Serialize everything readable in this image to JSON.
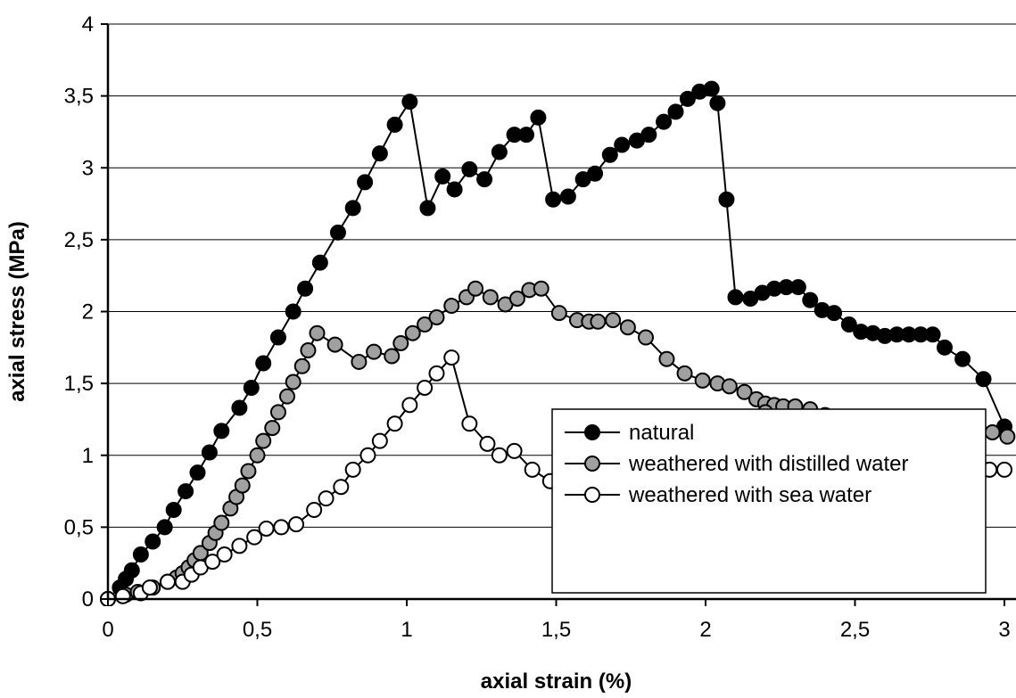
{
  "chart_data": {
    "type": "scatter",
    "title": "",
    "xlabel": "axial strain (%)",
    "ylabel": "axial stress (MPa)",
    "xlim": [
      0,
      3
    ],
    "ylim": [
      0,
      4
    ],
    "x_ticks": [
      0,
      0.5,
      1,
      1.5,
      2,
      2.5,
      3
    ],
    "x_tick_labels": [
      "0",
      "0,5",
      "1",
      "1,5",
      "2",
      "2,5",
      "3"
    ],
    "y_ticks": [
      0,
      0.5,
      1,
      1.5,
      2,
      2.5,
      3,
      3.5,
      4
    ],
    "y_tick_labels": [
      "0",
      "0,5",
      "1",
      "1,5",
      "2",
      "2,5",
      "3",
      "3,5",
      "4"
    ],
    "grid": "horizontal",
    "legend_position": "bottom-right",
    "line_color": "#000000",
    "series": [
      {
        "name": "natural",
        "marker_fill": "#000000",
        "points": [
          [
            0,
            0
          ],
          [
            0.04,
            0.08
          ],
          [
            0.06,
            0.14
          ],
          [
            0.08,
            0.2
          ],
          [
            0.11,
            0.31
          ],
          [
            0.15,
            0.4
          ],
          [
            0.19,
            0.5
          ],
          [
            0.22,
            0.62
          ],
          [
            0.26,
            0.75
          ],
          [
            0.3,
            0.88
          ],
          [
            0.34,
            1.02
          ],
          [
            0.38,
            1.17
          ],
          [
            0.44,
            1.33
          ],
          [
            0.48,
            1.47
          ],
          [
            0.52,
            1.64
          ],
          [
            0.57,
            1.82
          ],
          [
            0.62,
            2.0
          ],
          [
            0.66,
            2.16
          ],
          [
            0.71,
            2.34
          ],
          [
            0.77,
            2.55
          ],
          [
            0.82,
            2.72
          ],
          [
            0.86,
            2.9
          ],
          [
            0.91,
            3.1
          ],
          [
            0.96,
            3.3
          ],
          [
            1.01,
            3.46
          ],
          [
            1.07,
            2.72
          ],
          [
            1.12,
            2.94
          ],
          [
            1.16,
            2.85
          ],
          [
            1.21,
            2.99
          ],
          [
            1.26,
            2.92
          ],
          [
            1.31,
            3.11
          ],
          [
            1.36,
            3.23
          ],
          [
            1.4,
            3.23
          ],
          [
            1.44,
            3.35
          ],
          [
            1.49,
            2.78
          ],
          [
            1.54,
            2.8
          ],
          [
            1.59,
            2.92
          ],
          [
            1.63,
            2.96
          ],
          [
            1.68,
            3.09
          ],
          [
            1.72,
            3.16
          ],
          [
            1.77,
            3.19
          ],
          [
            1.81,
            3.23
          ],
          [
            1.86,
            3.32
          ],
          [
            1.9,
            3.39
          ],
          [
            1.94,
            3.48
          ],
          [
            1.98,
            3.53
          ],
          [
            2.02,
            3.55
          ],
          [
            2.04,
            3.45
          ],
          [
            2.07,
            2.78
          ],
          [
            2.1,
            2.1
          ],
          [
            2.15,
            2.09
          ],
          [
            2.19,
            2.13
          ],
          [
            2.23,
            2.16
          ],
          [
            2.27,
            2.17
          ],
          [
            2.31,
            2.17
          ],
          [
            2.35,
            2.08
          ],
          [
            2.39,
            2.01
          ],
          [
            2.43,
            1.99
          ],
          [
            2.48,
            1.91
          ],
          [
            2.52,
            1.86
          ],
          [
            2.56,
            1.85
          ],
          [
            2.6,
            1.83
          ],
          [
            2.64,
            1.84
          ],
          [
            2.68,
            1.84
          ],
          [
            2.72,
            1.84
          ],
          [
            2.76,
            1.84
          ],
          [
            2.8,
            1.75
          ],
          [
            2.86,
            1.67
          ],
          [
            2.93,
            1.53
          ],
          [
            3.0,
            1.2
          ]
        ]
      },
      {
        "name": "weathered with distilled water",
        "marker_fill": "#a0a0a0",
        "points": [
          [
            0,
            0
          ],
          [
            0.06,
            0.03
          ],
          [
            0.1,
            0.05
          ],
          [
            0.15,
            0.08
          ],
          [
            0.2,
            0.12
          ],
          [
            0.23,
            0.15
          ],
          [
            0.25,
            0.18
          ],
          [
            0.27,
            0.22
          ],
          [
            0.29,
            0.27
          ],
          [
            0.31,
            0.32
          ],
          [
            0.34,
            0.39
          ],
          [
            0.36,
            0.46
          ],
          [
            0.38,
            0.53
          ],
          [
            0.41,
            0.63
          ],
          [
            0.43,
            0.71
          ],
          [
            0.45,
            0.79
          ],
          [
            0.47,
            0.89
          ],
          [
            0.5,
            1.0
          ],
          [
            0.52,
            1.1
          ],
          [
            0.55,
            1.19
          ],
          [
            0.57,
            1.3
          ],
          [
            0.6,
            1.41
          ],
          [
            0.62,
            1.51
          ],
          [
            0.65,
            1.62
          ],
          [
            0.67,
            1.73
          ],
          [
            0.7,
            1.85
          ],
          [
            0.76,
            1.77
          ],
          [
            0.84,
            1.65
          ],
          [
            0.89,
            1.72
          ],
          [
            0.95,
            1.69
          ],
          [
            0.98,
            1.78
          ],
          [
            1.02,
            1.85
          ],
          [
            1.06,
            1.91
          ],
          [
            1.1,
            1.96
          ],
          [
            1.15,
            2.04
          ],
          [
            1.2,
            2.1
          ],
          [
            1.23,
            2.16
          ],
          [
            1.28,
            2.1
          ],
          [
            1.33,
            2.05
          ],
          [
            1.37,
            2.09
          ],
          [
            1.41,
            2.15
          ],
          [
            1.45,
            2.16
          ],
          [
            1.51,
            1.99
          ],
          [
            1.57,
            1.94
          ],
          [
            1.61,
            1.93
          ],
          [
            1.64,
            1.93
          ],
          [
            1.69,
            1.94
          ],
          [
            1.74,
            1.89
          ],
          [
            1.8,
            1.82
          ],
          [
            1.87,
            1.67
          ],
          [
            1.93,
            1.57
          ],
          [
            1.99,
            1.52
          ],
          [
            2.04,
            1.5
          ],
          [
            2.08,
            1.48
          ],
          [
            2.13,
            1.44
          ],
          [
            2.17,
            1.39
          ],
          [
            2.2,
            1.36
          ],
          [
            2.23,
            1.35
          ],
          [
            2.2,
            1.3
          ],
          [
            2.21,
            1.25
          ],
          [
            2.26,
            1.34
          ],
          [
            2.3,
            1.34
          ],
          [
            2.35,
            1.32
          ],
          [
            2.4,
            1.28
          ],
          [
            2.44,
            1.25
          ],
          [
            2.48,
            1.25
          ],
          [
            2.52,
            1.25
          ],
          [
            2.56,
            1.25
          ],
          [
            2.6,
            1.24
          ],
          [
            2.64,
            1.23
          ],
          [
            2.68,
            1.23
          ],
          [
            2.72,
            1.23
          ],
          [
            2.76,
            1.23
          ],
          [
            2.8,
            1.23
          ],
          [
            2.85,
            1.22
          ],
          [
            2.9,
            1.2
          ],
          [
            2.96,
            1.16
          ],
          [
            3.01,
            1.13
          ]
        ]
      },
      {
        "name": "weathered with sea water",
        "marker_fill": "#ffffff",
        "points": [
          [
            0,
            0
          ],
          [
            0.05,
            0.02
          ],
          [
            0.11,
            0.04
          ],
          [
            0.14,
            0.08
          ],
          [
            0.2,
            0.12
          ],
          [
            0.25,
            0.12
          ],
          [
            0.28,
            0.17
          ],
          [
            0.31,
            0.22
          ],
          [
            0.35,
            0.26
          ],
          [
            0.39,
            0.31
          ],
          [
            0.44,
            0.37
          ],
          [
            0.49,
            0.43
          ],
          [
            0.53,
            0.49
          ],
          [
            0.58,
            0.5
          ],
          [
            0.63,
            0.52
          ],
          [
            0.69,
            0.62
          ],
          [
            0.73,
            0.7
          ],
          [
            0.78,
            0.78
          ],
          [
            0.82,
            0.9
          ],
          [
            0.87,
            1.0
          ],
          [
            0.91,
            1.1
          ],
          [
            0.96,
            1.22
          ],
          [
            1.01,
            1.35
          ],
          [
            1.06,
            1.47
          ],
          [
            1.1,
            1.57
          ],
          [
            1.15,
            1.68
          ],
          [
            1.21,
            1.22
          ],
          [
            1.27,
            1.08
          ],
          [
            1.31,
            1.0
          ],
          [
            1.36,
            1.03
          ],
          [
            1.42,
            0.9
          ],
          [
            1.48,
            0.82
          ],
          [
            1.54,
            0.83
          ],
          [
            1.59,
            0.84
          ],
          [
            1.64,
            0.84
          ],
          [
            1.69,
            0.84
          ],
          [
            1.74,
            0.83
          ],
          [
            1.79,
            0.83
          ],
          [
            1.84,
            0.84
          ],
          [
            1.88,
            0.85
          ],
          [
            1.94,
            0.88
          ],
          [
            1.99,
            0.91
          ],
          [
            2.04,
            0.92
          ],
          [
            2.09,
            0.92
          ],
          [
            2.15,
            0.92
          ],
          [
            2.21,
            0.91
          ],
          [
            2.26,
            0.93
          ],
          [
            2.3,
            0.93
          ],
          [
            2.35,
            0.94
          ],
          [
            2.4,
            0.93
          ],
          [
            2.45,
            0.94
          ],
          [
            2.5,
            0.93
          ],
          [
            2.55,
            0.94
          ],
          [
            2.6,
            0.93
          ],
          [
            2.65,
            0.92
          ],
          [
            2.7,
            0.93
          ],
          [
            2.74,
            0.92
          ],
          [
            2.78,
            0.9
          ],
          [
            2.82,
            0.9
          ],
          [
            2.86,
            0.9
          ],
          [
            2.9,
            0.9
          ],
          [
            2.95,
            0.9
          ],
          [
            3.0,
            0.9
          ]
        ]
      }
    ]
  }
}
